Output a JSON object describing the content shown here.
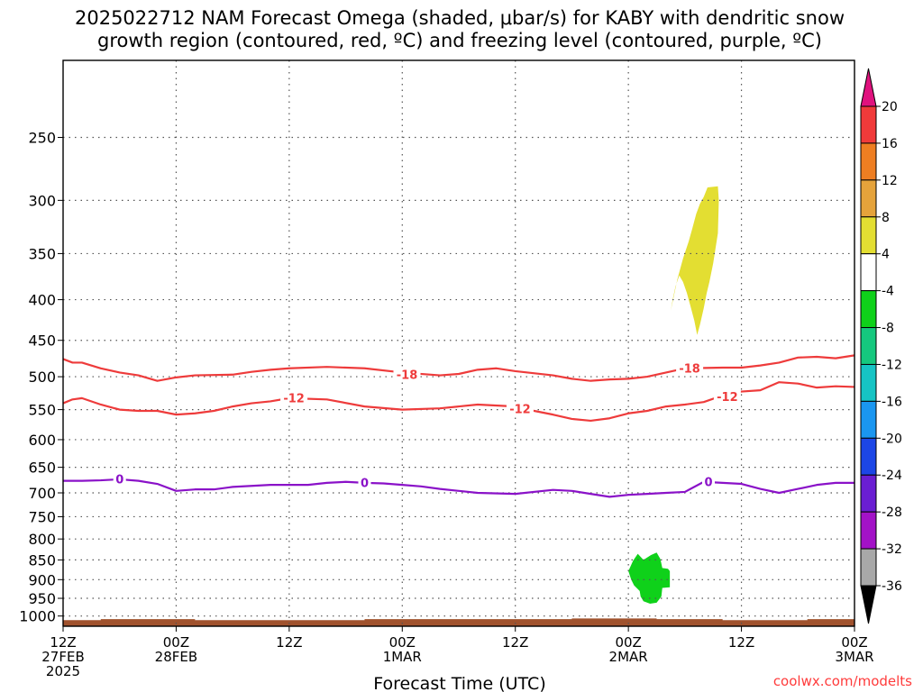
{
  "chart_data": {
    "type": "time-height cross section",
    "title_lines": [
      "2025022712 NAM Forecast Omega (shaded, μbar/s) for KABY with dendritic snow",
      "growth region (contoured, red, ºC) and freezing level (contoured, purple, ºC)"
    ],
    "xlabel": "Forecast Time (UTC)",
    "credit": "coolwx.com/modelts",
    "x_range_hours": [
      0,
      84
    ],
    "x_ticks": [
      {
        "hour": 0,
        "lines": [
          "12Z",
          "27FEB",
          "2025"
        ]
      },
      {
        "hour": 12,
        "lines": [
          "00Z",
          "28FEB"
        ]
      },
      {
        "hour": 24,
        "lines": [
          "12Z"
        ]
      },
      {
        "hour": 36,
        "lines": [
          "00Z",
          "1MAR"
        ]
      },
      {
        "hour": 48,
        "lines": [
          "12Z"
        ]
      },
      {
        "hour": 60,
        "lines": [
          "00Z",
          "2MAR"
        ]
      },
      {
        "hour": 72,
        "lines": [
          "12Z"
        ]
      },
      {
        "hour": 84,
        "lines": [
          "00Z",
          "3MAR"
        ]
      }
    ],
    "y_axis": {
      "scale": "log",
      "top_hpa": 200,
      "bottom_hpa": 1030,
      "ticks": [
        "250",
        "300",
        "350",
        "400",
        "450",
        "500",
        "550",
        "600",
        "650",
        "700",
        "750",
        "800",
        "850",
        "900",
        "950",
        "1000"
      ]
    },
    "grid": true,
    "colorbar": {
      "ticks": [
        "20",
        "16",
        "12",
        "8",
        "4",
        "-4",
        "-8",
        "-12",
        "-16",
        "-20",
        "-24",
        "-28",
        "-32",
        "-36"
      ],
      "bins": [
        {
          "from": 20,
          "to": "max",
          "color": "#e0127e",
          "arrow": "up"
        },
        {
          "from": 16,
          "to": 20,
          "color": "#f03a3a"
        },
        {
          "from": 12,
          "to": 16,
          "color": "#ee7e22"
        },
        {
          "from": 8,
          "to": 12,
          "color": "#e5a33b"
        },
        {
          "from": 4,
          "to": 8,
          "color": "#e3de32"
        },
        {
          "from": -4,
          "to": 4,
          "color": "#ffffff"
        },
        {
          "from": -8,
          "to": -4,
          "color": "#0fd11a"
        },
        {
          "from": -12,
          "to": -8,
          "color": "#15c87e"
        },
        {
          "from": -16,
          "to": -12,
          "color": "#16c4c4"
        },
        {
          "from": -20,
          "to": -16,
          "color": "#1a96f0"
        },
        {
          "from": -24,
          "to": -20,
          "color": "#1c46e6"
        },
        {
          "from": -28,
          "to": -24,
          "color": "#6a1ed2"
        },
        {
          "from": -32,
          "to": -28,
          "color": "#a312c7"
        },
        {
          "from": -36,
          "to": -32,
          "color": "#a8a8a8"
        },
        {
          "from": "min",
          "to": -36,
          "color": "#000000",
          "arrow": "down"
        }
      ]
    },
    "contours": [
      {
        "level": "-18",
        "color": "#ee3b3b",
        "points": [
          [
            0,
            475
          ],
          [
            1,
            480
          ],
          [
            2,
            480
          ],
          [
            4,
            488
          ],
          [
            6,
            494
          ],
          [
            8,
            498
          ],
          [
            10,
            506
          ],
          [
            12,
            501
          ],
          [
            14,
            498
          ],
          [
            18,
            497
          ],
          [
            20,
            493
          ],
          [
            22,
            490
          ],
          [
            24,
            488
          ],
          [
            28,
            486
          ],
          [
            32,
            488
          ],
          [
            36,
            494
          ],
          [
            40,
            498
          ],
          [
            42,
            496
          ],
          [
            44,
            490
          ],
          [
            46,
            488
          ],
          [
            48,
            492
          ],
          [
            52,
            498
          ],
          [
            54,
            503
          ],
          [
            56,
            506
          ],
          [
            58,
            504
          ],
          [
            60,
            503
          ],
          [
            62,
            500
          ],
          [
            64,
            494
          ],
          [
            66,
            488
          ],
          [
            70,
            487
          ],
          [
            72,
            487
          ],
          [
            74,
            484
          ],
          [
            76,
            480
          ],
          [
            78,
            473
          ],
          [
            80,
            472
          ],
          [
            82,
            474
          ],
          [
            84,
            470
          ]
        ],
        "labels": [
          [
            36.5,
            497
          ],
          [
            66.5,
            488
          ]
        ]
      },
      {
        "level": "-12",
        "color": "#ee3b3b",
        "points": [
          [
            0,
            540
          ],
          [
            1,
            534
          ],
          [
            2,
            532
          ],
          [
            4,
            542
          ],
          [
            6,
            550
          ],
          [
            8,
            552
          ],
          [
            10,
            552
          ],
          [
            12,
            558
          ],
          [
            14,
            556
          ],
          [
            16,
            552
          ],
          [
            18,
            545
          ],
          [
            20,
            540
          ],
          [
            22,
            537
          ],
          [
            24,
            532
          ],
          [
            28,
            534
          ],
          [
            32,
            545
          ],
          [
            36,
            550
          ],
          [
            40,
            548
          ],
          [
            44,
            542
          ],
          [
            48,
            545
          ],
          [
            50,
            552
          ],
          [
            52,
            558
          ],
          [
            54,
            565
          ],
          [
            56,
            568
          ],
          [
            58,
            564
          ],
          [
            60,
            556
          ],
          [
            62,
            552
          ],
          [
            64,
            545
          ],
          [
            66,
            542
          ],
          [
            68,
            538
          ],
          [
            70,
            528
          ],
          [
            72,
            522
          ],
          [
            74,
            520
          ],
          [
            76,
            508
          ],
          [
            78,
            510
          ],
          [
            80,
            516
          ],
          [
            82,
            514
          ],
          [
            84,
            515
          ]
        ],
        "labels": [
          [
            24.5,
            532
          ],
          [
            48.5,
            549
          ],
          [
            70.5,
            530
          ]
        ]
      },
      {
        "level": "0",
        "color": "#8a12c8",
        "points": [
          [
            0,
            676
          ],
          [
            2,
            676
          ],
          [
            4,
            675
          ],
          [
            6,
            673
          ],
          [
            8,
            676
          ],
          [
            10,
            682
          ],
          [
            12,
            696
          ],
          [
            14,
            693
          ],
          [
            16,
            693
          ],
          [
            18,
            688
          ],
          [
            20,
            686
          ],
          [
            22,
            684
          ],
          [
            24,
            684
          ],
          [
            26,
            684
          ],
          [
            28,
            680
          ],
          [
            30,
            678
          ],
          [
            32,
            680
          ],
          [
            34,
            681
          ],
          [
            36,
            684
          ],
          [
            38,
            687
          ],
          [
            40,
            692
          ],
          [
            44,
            700
          ],
          [
            48,
            702
          ],
          [
            52,
            694
          ],
          [
            54,
            696
          ],
          [
            56,
            702
          ],
          [
            58,
            708
          ],
          [
            60,
            704
          ],
          [
            62,
            702
          ],
          [
            64,
            700
          ],
          [
            66,
            698
          ],
          [
            68,
            678
          ],
          [
            70,
            680
          ],
          [
            72,
            682
          ],
          [
            74,
            692
          ],
          [
            76,
            700
          ],
          [
            78,
            692
          ],
          [
            80,
            684
          ],
          [
            82,
            680
          ],
          [
            84,
            680
          ]
        ],
        "labels": [
          [
            6,
            673
          ],
          [
            32,
            680
          ],
          [
            68.5,
            678
          ]
        ]
      }
    ],
    "shaded_regions": [
      {
        "bin": "4 to 8",
        "color": "#e3de32",
        "points": [
          [
            64.5,
            413
          ],
          [
            65.2,
            377
          ],
          [
            65.8,
            355
          ],
          [
            66.4,
            338
          ],
          [
            66.8,
            325
          ],
          [
            67.2,
            312
          ],
          [
            67.6,
            303
          ],
          [
            68,
            297
          ],
          [
            68.4,
            289
          ],
          [
            69.5,
            288
          ],
          [
            69.6,
            300
          ],
          [
            69.5,
            330
          ],
          [
            69.0,
            360
          ],
          [
            68.6,
            380
          ],
          [
            68.3,
            393
          ],
          [
            68.0,
            410
          ],
          [
            67.6,
            430
          ],
          [
            67.3,
            443
          ],
          [
            67.0,
            425
          ],
          [
            66.6,
            408
          ],
          [
            66.2,
            392
          ],
          [
            65.8,
            380
          ],
          [
            65.4,
            373
          ],
          [
            65.0,
            385
          ],
          [
            64.7,
            400
          ]
        ]
      },
      {
        "bin": "-8 to -4",
        "color": "#0fd11a",
        "points": [
          [
            60,
            878
          ],
          [
            60.5,
            852
          ],
          [
            61,
            835
          ],
          [
            61.6,
            850
          ],
          [
            62.4,
            838
          ],
          [
            63,
            832
          ],
          [
            63.4,
            848
          ],
          [
            63.6,
            870
          ],
          [
            64.2,
            872
          ],
          [
            64.4,
            878
          ],
          [
            64.4,
            920
          ],
          [
            63.6,
            922
          ],
          [
            63.5,
            945
          ],
          [
            63,
            962
          ],
          [
            62.3,
            965
          ],
          [
            61.6,
            958
          ],
          [
            61.3,
            945
          ],
          [
            61.2,
            930
          ],
          [
            60.6,
            915
          ],
          [
            60.3,
            900
          ]
        ]
      }
    ],
    "terrain": {
      "color": "#a0522d",
      "top_hpa_by_hour": [
        [
          0,
          1012
        ],
        [
          4,
          1012
        ],
        [
          4,
          1009
        ],
        [
          14,
          1009
        ],
        [
          14,
          1012
        ],
        [
          32,
          1012
        ],
        [
          32,
          1009
        ],
        [
          54,
          1009
        ],
        [
          54,
          1007
        ],
        [
          63,
          1007
        ],
        [
          63,
          1009
        ],
        [
          70,
          1009
        ],
        [
          70,
          1012
        ],
        [
          79,
          1012
        ],
        [
          79,
          1009
        ],
        [
          84,
          1009
        ]
      ]
    }
  }
}
